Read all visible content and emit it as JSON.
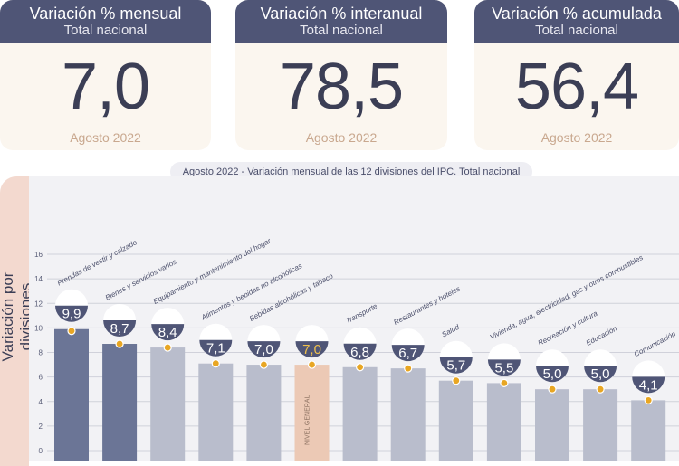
{
  "cards": [
    {
      "title": "Variación % mensual",
      "subtitle": "Total nacional",
      "value": "7,0",
      "date": "Agosto 2022"
    },
    {
      "title": "Variación % interanual",
      "subtitle": "Total nacional",
      "value": "78,5",
      "date": "Agosto 2022"
    },
    {
      "title": "Variación % acumulada",
      "subtitle": "Total nacional",
      "value": "56,4",
      "date": "Agosto 2022"
    }
  ],
  "chart_data": {
    "type": "bar",
    "title": "Agosto 2022 - Variación mensual de las 12 divisiones del IPC. Total nacional",
    "ylabel": "Variación por divisiones",
    "ylim": [
      0,
      16
    ],
    "yticks": [
      "0",
      "2",
      "4",
      "6",
      "8",
      "10",
      "12",
      "14",
      "16"
    ],
    "categories": [
      "Prendas de vestir y calzado",
      "Bienes y servicios varios",
      "Equipamiento y mantenimiento del hogar",
      "Alimentos y bebidas no alcohólicas",
      "Bebidas alcohólicas y tabaco",
      "NIVEL GENERAL",
      "Transporte",
      "Restaurantes y hoteles",
      "Salud",
      "Vivienda, agua, electricidad, gas y otros combustibles",
      "Recreación y cultura",
      "Educación",
      "Comunicación"
    ],
    "values": [
      9.9,
      8.7,
      8.4,
      7.1,
      7.0,
      7.0,
      6.8,
      6.7,
      5.7,
      5.5,
      5.0,
      5.0,
      4.1
    ],
    "value_labels": [
      "9,9",
      "8,7",
      "8,4",
      "7,1",
      "7,0",
      "7,0",
      "6,8",
      "6,7",
      "5,7",
      "5,5",
      "5,0",
      "5,0",
      "4,1"
    ],
    "bar_label": "NIVEL GENERAL",
    "grid": true,
    "colors": {
      "dark_bar": "#6b7596",
      "light_bar": "#b9bdcc",
      "general_bar": "#ecc9b5",
      "marker": "#e8a623",
      "badge": "#4f5576",
      "general_value": "#f0c14b"
    }
  }
}
